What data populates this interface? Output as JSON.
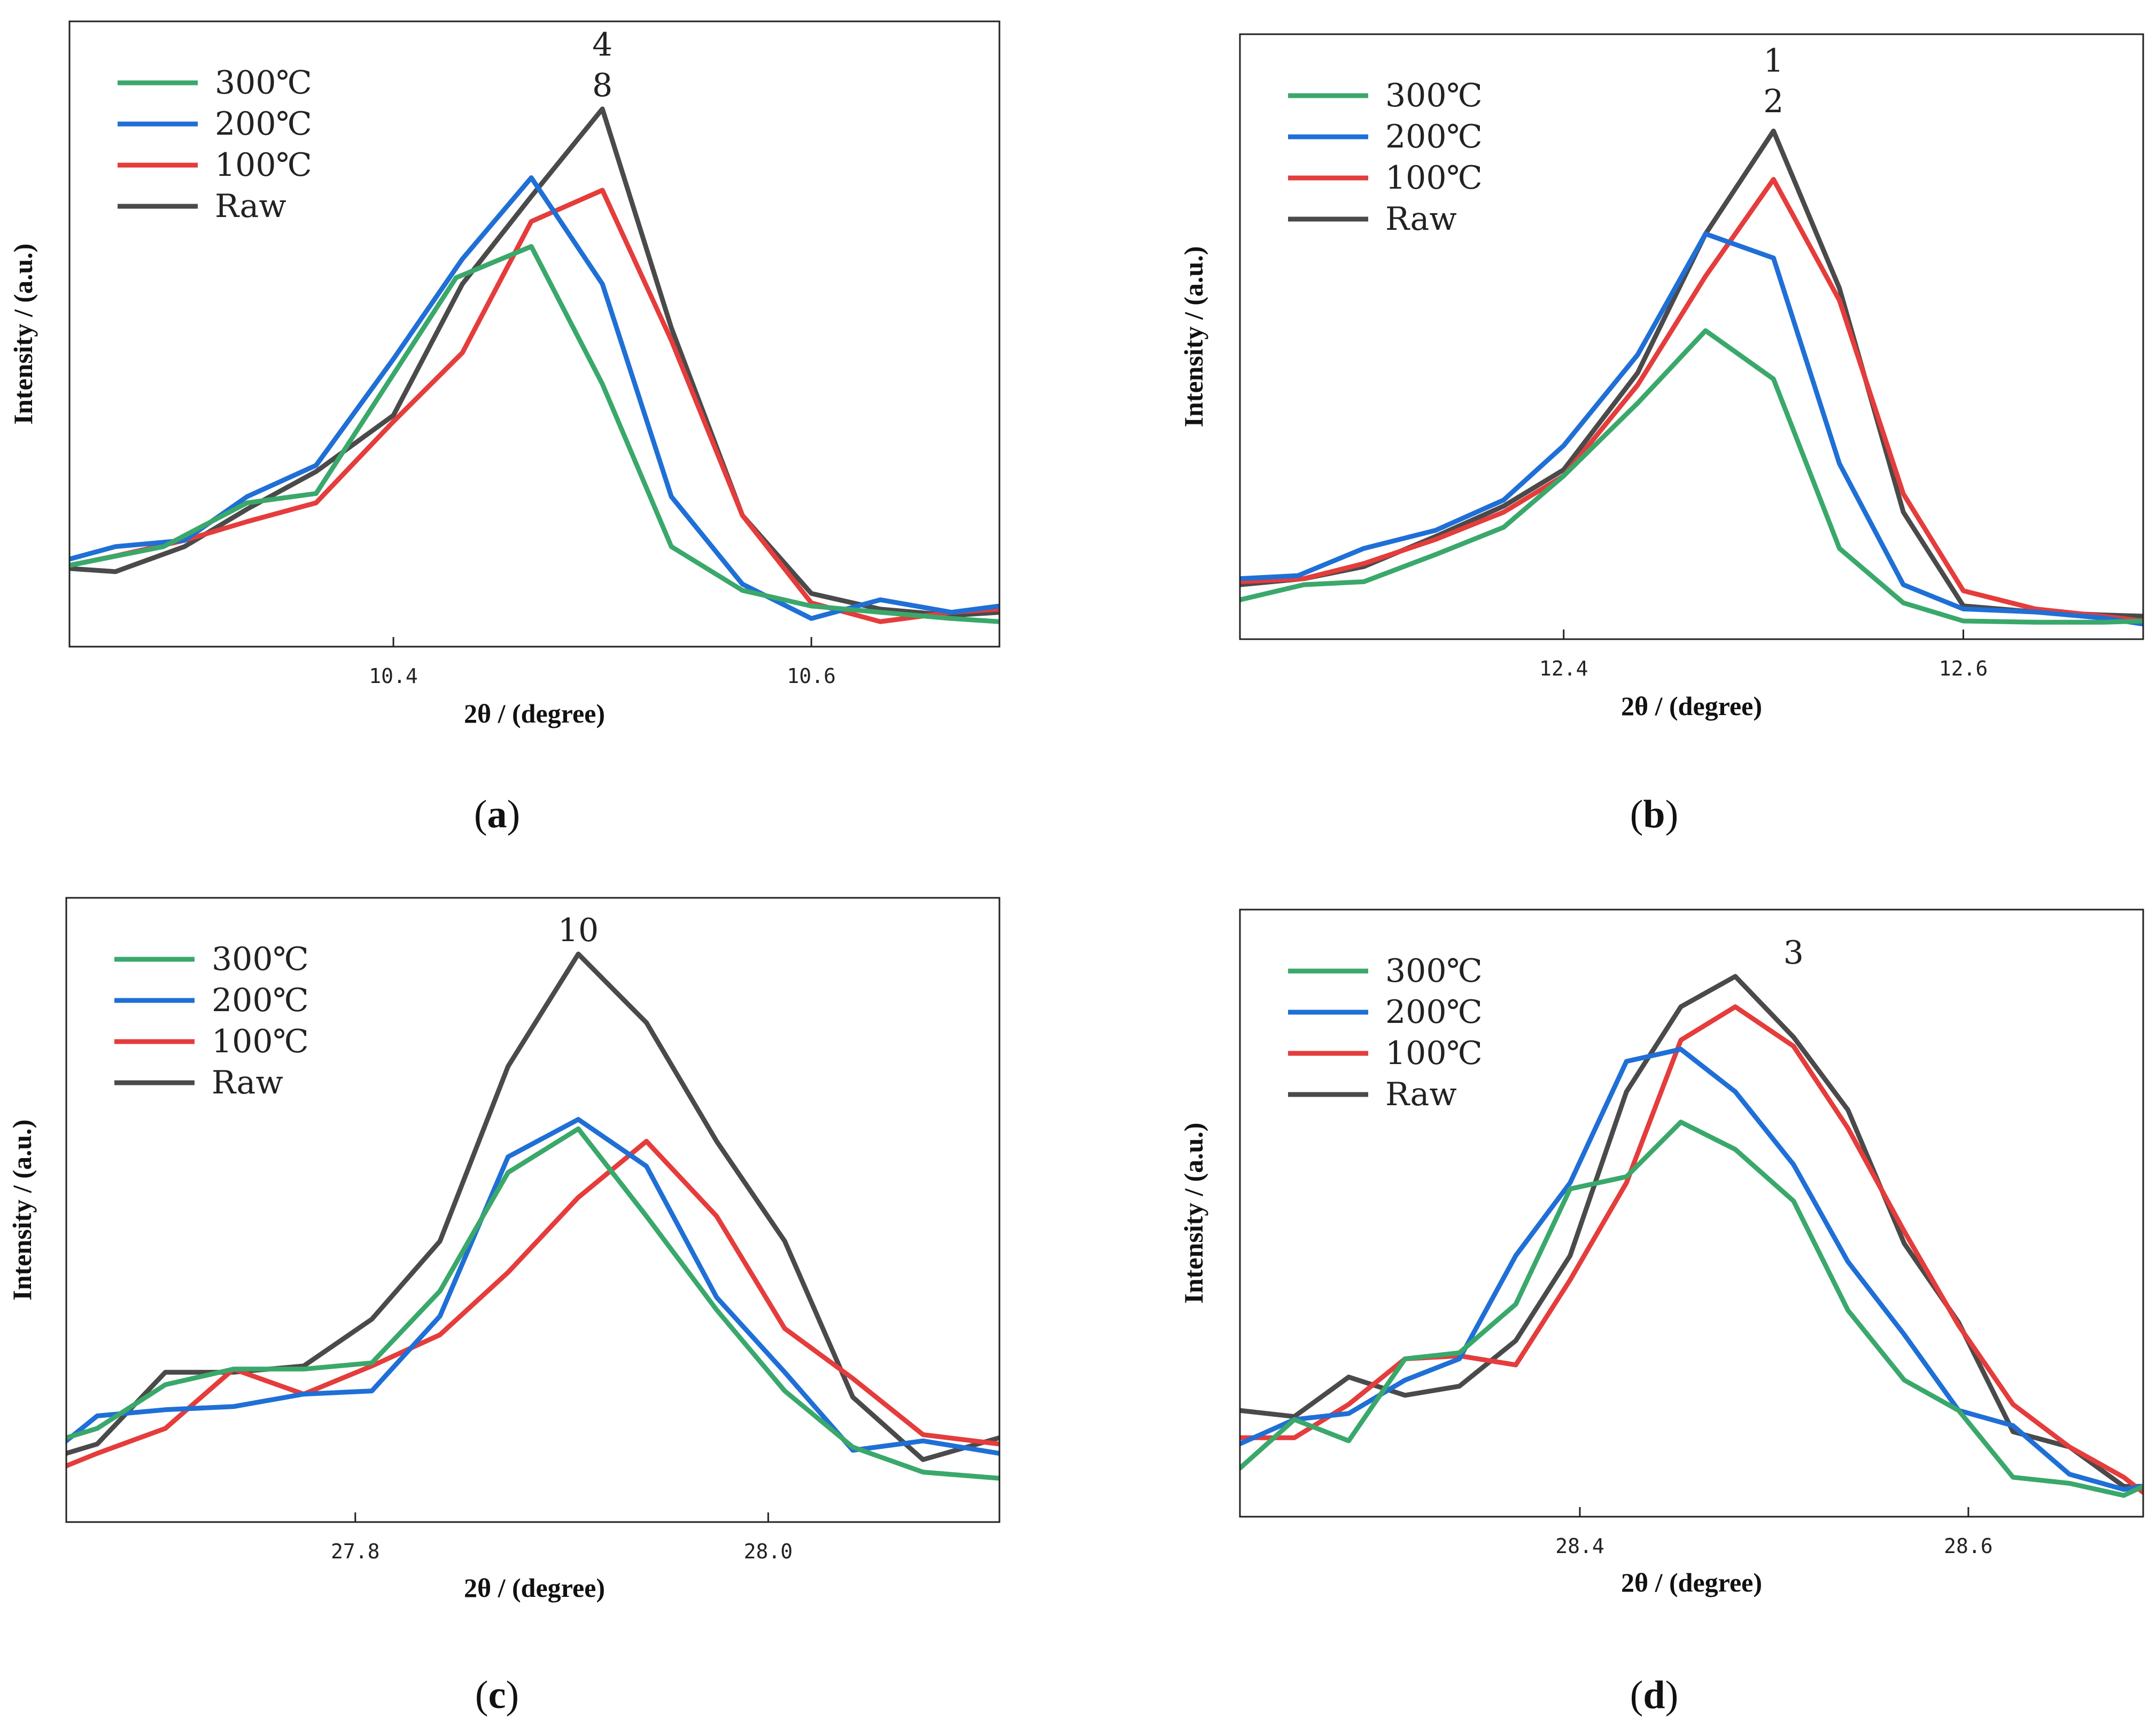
{
  "colors": {
    "300": "#3aa86b",
    "200": "#1f6fd6",
    "100": "#e53c3c",
    "raw": "#4a4a4a"
  },
  "chart_data": [
    {
      "type": "line",
      "panel_label": "a",
      "xlabel": "2θ / (degree)",
      "ylabel": "Intensity / (a.u.)",
      "xlim": [
        10.245,
        10.69
      ],
      "ylim": [
        0,
        100
      ],
      "xticks": [
        10.4,
        10.6
      ],
      "xtick_labels": [
        "10.4",
        "10.6"
      ],
      "legend": {
        "position": "top-left",
        "entries": [
          "300℃",
          "200℃",
          "100℃",
          "Raw"
        ]
      },
      "peak_label": {
        "lines": [
          "4",
          "8"
        ],
        "x": 10.5,
        "y": 86
      },
      "series": [
        {
          "name": "300℃",
          "color_key": "300",
          "x": [
            10.245,
            10.29,
            10.33,
            10.363,
            10.43,
            10.466,
            10.5,
            10.533,
            10.567,
            10.6,
            10.633,
            10.667,
            10.69
          ],
          "y": [
            13,
            16,
            23,
            24.5,
            59,
            64,
            42,
            16,
            9,
            6.5,
            5.5,
            4.5,
            4
          ]
        },
        {
          "name": "200℃",
          "color_key": "200",
          "x": [
            10.245,
            10.267,
            10.3,
            10.33,
            10.363,
            10.4,
            10.433,
            10.466,
            10.5,
            10.533,
            10.567,
            10.6,
            10.633,
            10.667,
            10.69
          ],
          "y": [
            14,
            16,
            17,
            24,
            29,
            46,
            62,
            75,
            58,
            24,
            10,
            4.5,
            7.5,
            5.5,
            6.5
          ]
        },
        {
          "name": "100℃",
          "color_key": "100",
          "x": [
            10.245,
            10.267,
            10.3,
            10.33,
            10.363,
            10.4,
            10.433,
            10.466,
            10.5,
            10.533,
            10.567,
            10.6,
            10.633,
            10.667,
            10.69
          ],
          "y": [
            13,
            14.5,
            17,
            20,
            23,
            36,
            47,
            68,
            73,
            49,
            21,
            7,
            4,
            5.5,
            6
          ]
        },
        {
          "name": "Raw",
          "color_key": "raw",
          "x": [
            10.245,
            10.267,
            10.3,
            10.33,
            10.363,
            10.4,
            10.433,
            10.466,
            10.5,
            10.533,
            10.567,
            10.6,
            10.633,
            10.667,
            10.69
          ],
          "y": [
            12.5,
            12,
            16,
            22,
            28,
            37,
            58,
            72,
            86,
            51,
            21,
            8.5,
            6,
            5,
            5.5
          ]
        }
      ]
    },
    {
      "type": "line",
      "panel_label": "b",
      "xlabel": "2θ / (degree)",
      "ylabel": "Intensity / (a.u.)",
      "xlim": [
        12.238,
        12.69
      ],
      "ylim": [
        0,
        100
      ],
      "xticks": [
        12.4,
        12.6
      ],
      "xtick_labels": [
        "12.4",
        "12.6"
      ],
      "legend": {
        "position": "top-left",
        "entries": [
          "300℃",
          "200℃",
          "100℃",
          "Raw"
        ]
      },
      "peak_label": {
        "lines": [
          "1",
          "2"
        ],
        "x": 12.505,
        "y": 85
      },
      "series": [
        {
          "name": "300℃",
          "color_key": "300",
          "x": [
            12.238,
            12.27,
            12.3,
            12.336,
            12.37,
            12.4,
            12.437,
            12.471,
            12.505,
            12.538,
            12.57,
            12.6,
            12.636,
            12.67,
            12.69
          ],
          "y": [
            6.5,
            9,
            9.5,
            14,
            18.5,
            27,
            39,
            51,
            43,
            15,
            6,
            3,
            2.8,
            2.8,
            3
          ]
        },
        {
          "name": "200℃",
          "color_key": "200",
          "x": [
            12.238,
            12.267,
            12.3,
            12.336,
            12.37,
            12.4,
            12.437,
            12.471,
            12.505,
            12.538,
            12.57,
            12.6,
            12.636,
            12.67,
            12.69
          ],
          "y": [
            10,
            10.5,
            15,
            18,
            23,
            32,
            47,
            67,
            63,
            29,
            9,
            5,
            4.5,
            3.5,
            2.5
          ]
        },
        {
          "name": "100℃",
          "color_key": "100",
          "x": [
            12.238,
            12.27,
            12.3,
            12.336,
            12.37,
            12.4,
            12.437,
            12.471,
            12.505,
            12.538,
            12.57,
            12.6,
            12.636,
            12.67,
            12.69
          ],
          "y": [
            9.5,
            10,
            12.5,
            16.5,
            21,
            27,
            42,
            60,
            76,
            56,
            24,
            8,
            5,
            3.8,
            3
          ]
        },
        {
          "name": "Raw",
          "color_key": "raw",
          "x": [
            12.238,
            12.27,
            12.3,
            12.336,
            12.37,
            12.4,
            12.437,
            12.471,
            12.505,
            12.538,
            12.57,
            12.6,
            12.636,
            12.67,
            12.69
          ],
          "y": [
            9,
            10,
            12,
            17,
            22,
            28,
            44,
            67,
            84,
            58,
            21,
            5.5,
            4.5,
            4,
            3.8
          ]
        }
      ]
    },
    {
      "type": "line",
      "panel_label": "c",
      "xlabel": "2θ / (degree)",
      "ylabel": "Intensity / (a.u.)",
      "xlim": [
        27.66,
        28.112
      ],
      "ylim": [
        0,
        100
      ],
      "xticks": [
        27.8,
        28.0
      ],
      "xtick_labels": [
        "27.8",
        "28.0"
      ],
      "legend": {
        "position": "top-left",
        "entries": [
          "300℃",
          "200℃",
          "100℃",
          "Raw"
        ]
      },
      "peak_label": {
        "lines": [
          "10"
        ],
        "x": 27.908,
        "y": 91
      },
      "series": [
        {
          "name": "300℃",
          "color_key": "300",
          "x": [
            27.66,
            27.675,
            27.708,
            27.741,
            27.775,
            27.808,
            27.841,
            27.874,
            27.908,
            27.941,
            27.975,
            28.008,
            28.041,
            28.075,
            28.112
          ],
          "y": [
            13.5,
            15,
            22,
            24.5,
            24.5,
            25.5,
            37,
            56,
            63,
            49,
            34,
            21,
            12,
            8,
            7
          ]
        },
        {
          "name": "200℃",
          "color_key": "200",
          "x": [
            27.66,
            27.675,
            27.708,
            27.741,
            27.775,
            27.808,
            27.841,
            27.874,
            27.908,
            27.941,
            27.975,
            28.008,
            28.041,
            28.075,
            28.112
          ],
          "y": [
            13,
            17,
            18,
            18.5,
            20.5,
            21,
            33,
            58.5,
            64.5,
            57,
            36,
            24,
            11.5,
            13,
            11
          ]
        },
        {
          "name": "100℃",
          "color_key": "100",
          "x": [
            27.66,
            27.675,
            27.708,
            27.741,
            27.775,
            27.808,
            27.841,
            27.874,
            27.908,
            27.941,
            27.975,
            28.008,
            28.041,
            28.075,
            28.112
          ],
          "y": [
            9,
            11,
            15,
            24.5,
            20.5,
            25,
            30,
            40,
            52,
            61,
            49,
            31,
            23,
            14,
            12.5
          ]
        },
        {
          "name": "Raw",
          "color_key": "raw",
          "x": [
            27.66,
            27.675,
            27.708,
            27.741,
            27.775,
            27.808,
            27.841,
            27.874,
            27.908,
            27.941,
            27.975,
            28.008,
            28.041,
            28.075,
            28.112
          ],
          "y": [
            11,
            12.5,
            24,
            24,
            25,
            32.5,
            45,
            73,
            91,
            80,
            61,
            45,
            20,
            10,
            13.5
          ]
        }
      ]
    },
    {
      "type": "line",
      "panel_label": "d",
      "xlabel": "2θ / (degree)",
      "ylabel": "Intensity / (a.u.)",
      "xlim": [
        28.225,
        28.69
      ],
      "ylim": [
        0,
        100
      ],
      "xticks": [
        28.4,
        28.6
      ],
      "xtick_labels": [
        "28.4",
        "28.6"
      ],
      "legend": {
        "position": "top-left",
        "entries": [
          "300℃",
          "200℃",
          "100℃",
          "Raw"
        ]
      },
      "peak_label": {
        "lines": [
          "3"
        ],
        "x": 28.51,
        "y": 89
      },
      "series": [
        {
          "name": "300℃",
          "color_key": "300",
          "x": [
            28.225,
            28.253,
            28.281,
            28.31,
            28.338,
            28.367,
            28.395,
            28.424,
            28.452,
            28.48,
            28.51,
            28.538,
            28.567,
            28.595,
            28.623,
            28.652,
            28.68,
            28.69
          ],
          "y": [
            8,
            16,
            12.5,
            26,
            27,
            35,
            54,
            56,
            65,
            60.5,
            52,
            34,
            22.5,
            17.5,
            6.5,
            5.5,
            3.5,
            5
          ]
        },
        {
          "name": "200℃",
          "color_key": "200",
          "x": [
            28.225,
            28.253,
            28.281,
            28.31,
            28.338,
            28.367,
            28.395,
            28.424,
            28.452,
            28.48,
            28.51,
            28.538,
            28.567,
            28.595,
            28.623,
            28.652,
            28.68,
            28.69
          ],
          "y": [
            12,
            16,
            17,
            22.5,
            26,
            43,
            55,
            75,
            77,
            70,
            58,
            42,
            30,
            17.5,
            15,
            7,
            4.5,
            5
          ]
        },
        {
          "name": "100℃",
          "color_key": "100",
          "x": [
            28.225,
            28.253,
            28.281,
            28.31,
            28.338,
            28.367,
            28.395,
            28.424,
            28.452,
            28.48,
            28.51,
            28.538,
            28.567,
            28.595,
            28.623,
            28.652,
            28.68,
            28.69
          ],
          "y": [
            13,
            13,
            18.5,
            26,
            26.5,
            25,
            39,
            55,
            78.5,
            84,
            77.5,
            64,
            47,
            31.5,
            18.5,
            11.5,
            6.5,
            4
          ]
        },
        {
          "name": "Raw",
          "color_key": "raw",
          "x": [
            28.225,
            28.253,
            28.281,
            28.31,
            28.338,
            28.367,
            28.395,
            28.424,
            28.452,
            28.48,
            28.51,
            28.538,
            28.567,
            28.595,
            28.623,
            28.652,
            28.68,
            28.69
          ],
          "y": [
            17.5,
            16.5,
            23,
            20,
            21.5,
            29,
            43,
            70,
            84,
            89,
            79,
            67,
            45,
            32,
            14,
            11.5,
            5,
            5
          ]
        }
      ]
    }
  ]
}
